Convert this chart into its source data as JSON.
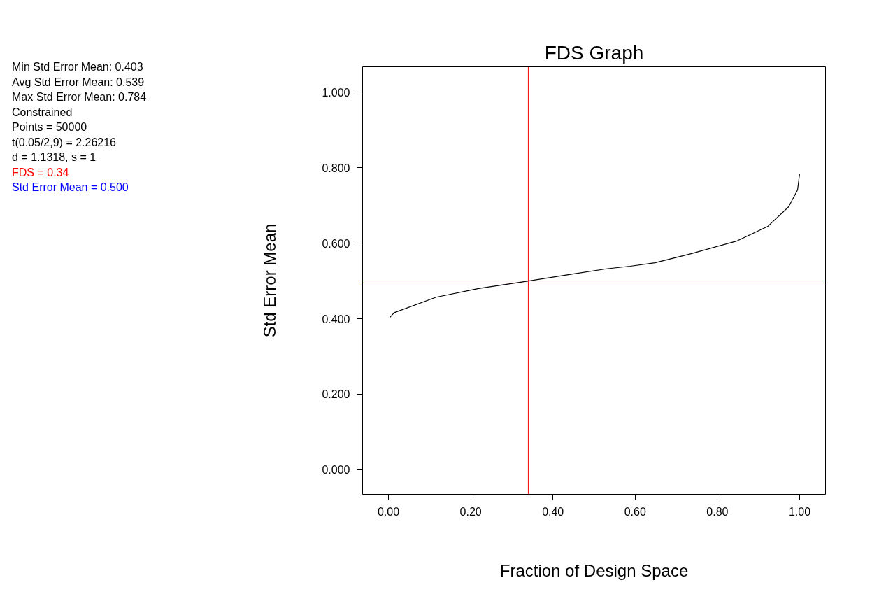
{
  "chart_data": {
    "type": "line",
    "title": "FDS Graph",
    "xlabel": "Fraction of Design Space",
    "ylabel": "Std Error Mean",
    "annotations": [
      "Min Std Error Mean: 0.403",
      "Avg Std Error Mean: 0.539",
      "Max Std Error Mean: 0.784",
      "Constrained",
      "Points = 50000",
      "t(0.05/2,9) = 2.26216",
      "d = 1.1318, s = 1"
    ],
    "x": [
      0.003,
      0.014,
      0.116,
      0.219,
      0.341,
      0.44,
      0.53,
      0.588,
      0.648,
      0.736,
      0.848,
      0.922,
      0.973,
      0.995,
      1.0
    ],
    "series": [
      {
        "color": "#000000",
        "values": [
          0.403,
          0.416,
          0.457,
          0.48,
          0.5,
          0.517,
          0.532,
          0.539,
          0.548,
          0.572,
          0.606,
          0.644,
          0.696,
          0.741,
          0.784
        ]
      }
    ],
    "xlim": [
      -0.063,
      1.063
    ],
    "ylim": [
      -0.065,
      1.067
    ],
    "xticks": [
      {
        "value": 0,
        "label": "0.00"
      },
      {
        "value": 0.2,
        "label": "0.20"
      },
      {
        "value": 0.4,
        "label": "0.40"
      },
      {
        "value": 0.6,
        "label": "0.60"
      },
      {
        "value": 0.8,
        "label": "0.80"
      },
      {
        "value": 1,
        "label": "1.00"
      }
    ],
    "yticks": [
      {
        "value": 0,
        "label": "0.000"
      },
      {
        "value": 0.2,
        "label": "0.200"
      },
      {
        "value": 0.4,
        "label": "0.400"
      },
      {
        "value": 0.6,
        "label": "0.600"
      },
      {
        "value": 0.8,
        "label": "0.800"
      },
      {
        "value": 1,
        "label": "1.000"
      }
    ],
    "ref_lines": [
      {
        "axis": "x",
        "value": 0.34,
        "label": "FDS = 0.34",
        "color": "#ff0000"
      },
      {
        "axis": "y",
        "value": 0.5,
        "label": "Std Error Mean = 0.500",
        "color": "#0000ff"
      }
    ],
    "grid": false,
    "marker": "none",
    "line_style": "solid"
  }
}
